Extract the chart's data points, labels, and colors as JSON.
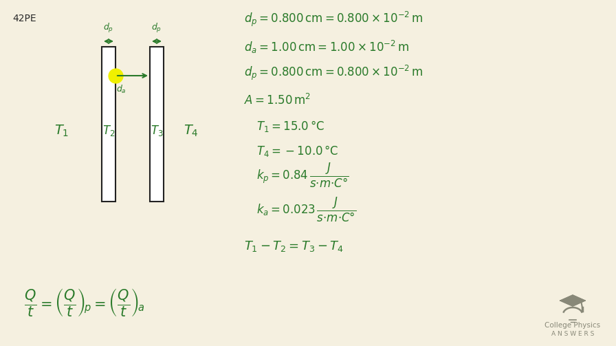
{
  "background_color": "#f5f0e0",
  "text_color_green": "#2a7a2a",
  "text_color_dark": "#2a2a2a",
  "text_color_gray": "#888878",
  "label_42pe": "42PE",
  "logo_text1": "College Physics",
  "logo_text2": "A N S W E R S"
}
